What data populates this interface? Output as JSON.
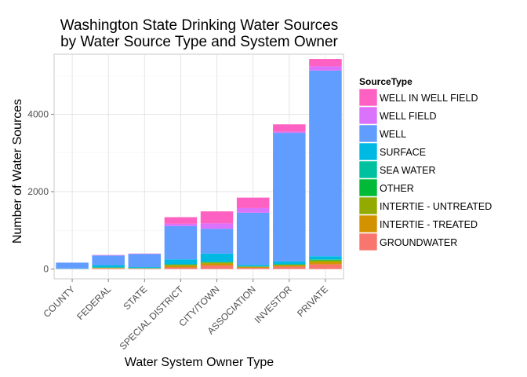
{
  "chart_data": {
    "type": "bar",
    "stacked": true,
    "title": [
      "Washington State Drinking Water Sources",
      "by Water Source Type and System Owner"
    ],
    "xlabel": "Water System Owner Type",
    "ylabel": "Number of Water Sources",
    "ylim": [
      0,
      5550
    ],
    "yticks": [
      0,
      2000,
      4000
    ],
    "grid": true,
    "legend_placement": "right",
    "legend_title": "SourceType",
    "categories": [
      "COUNTY",
      "FEDERAL",
      "STATE",
      "SPECIAL DISTRICT",
      "CITY/TOWN",
      "ASSOCIATION",
      "INVESTOR",
      "PRIVATE"
    ],
    "series": [
      {
        "name": "GROUNDWATER",
        "color": "#F8766D",
        "values": [
          5,
          15,
          10,
          40,
          90,
          30,
          60,
          120
        ]
      },
      {
        "name": "INTERTIE - TREATED",
        "color": "#D39200",
        "values": [
          0,
          10,
          5,
          40,
          50,
          20,
          30,
          60
        ]
      },
      {
        "name": "INTERTIE - UNTREATED",
        "color": "#93AA00",
        "values": [
          0,
          10,
          5,
          30,
          30,
          10,
          20,
          40
        ]
      },
      {
        "name": "OTHER",
        "color": "#00BA38",
        "values": [
          0,
          5,
          5,
          10,
          10,
          5,
          10,
          20
        ]
      },
      {
        "name": "SEA WATER",
        "color": "#00C19F",
        "values": [
          0,
          0,
          0,
          0,
          0,
          0,
          0,
          10
        ]
      },
      {
        "name": "SURFACE",
        "color": "#00B9E3",
        "values": [
          10,
          60,
          25,
          130,
          220,
          40,
          80,
          80
        ]
      },
      {
        "name": "WELL",
        "color": "#619CFF",
        "values": [
          150,
          250,
          340,
          860,
          640,
          1350,
          3320,
          4800
        ]
      },
      {
        "name": "WELL FIELD",
        "color": "#DB72FB",
        "values": [
          0,
          10,
          5,
          60,
          140,
          120,
          30,
          110
        ]
      },
      {
        "name": "WELL IN WELL FIELD",
        "color": "#FF61C3",
        "values": [
          0,
          5,
          5,
          170,
          310,
          270,
          190,
          190
        ]
      }
    ]
  }
}
